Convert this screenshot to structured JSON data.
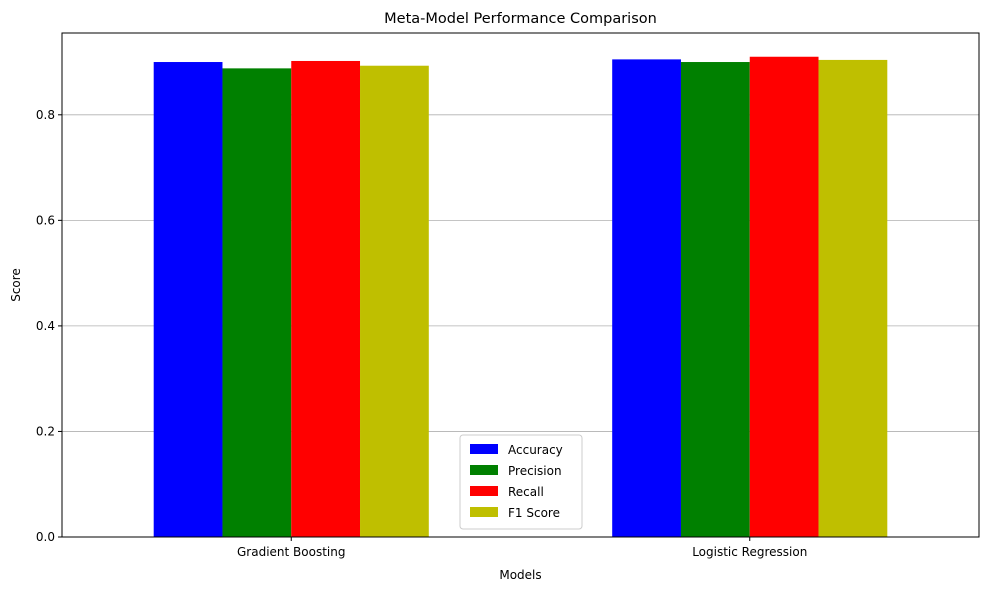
{
  "chart_data": {
    "type": "bar",
    "title": "Meta-Model Performance Comparison",
    "xlabel": "Models",
    "ylabel": "Score",
    "categories": [
      "Gradient Boosting",
      "Logistic Regression"
    ],
    "series": [
      {
        "name": "Accuracy",
        "color": "#0000ff",
        "values": [
          0.9,
          0.905
        ]
      },
      {
        "name": "Precision",
        "color": "#008000",
        "values": [
          0.888,
          0.9
        ]
      },
      {
        "name": "Recall",
        "color": "#ff0000",
        "values": [
          0.902,
          0.91
        ]
      },
      {
        "name": "F1 Score",
        "color": "#bfbf00",
        "values": [
          0.893,
          0.904
        ]
      }
    ],
    "ylim": [
      0,
      0.955
    ],
    "yticks": [
      0.0,
      0.2,
      0.4,
      0.6,
      0.8
    ],
    "ytick_labels": [
      "0.0",
      "0.2",
      "0.4",
      "0.6",
      "0.8"
    ],
    "grid": "y",
    "legend": "lower center"
  }
}
